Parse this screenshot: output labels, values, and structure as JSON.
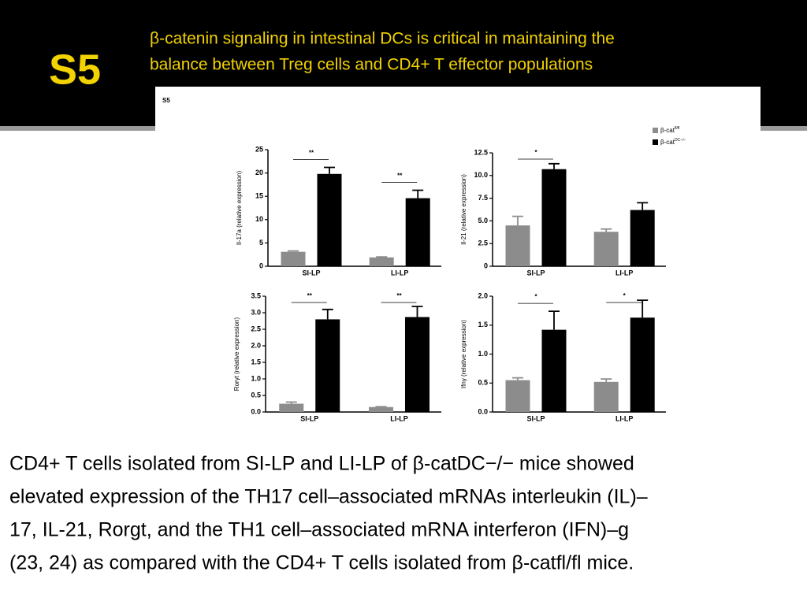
{
  "slide": {
    "number": "S5",
    "title": [
      "β-catenin signaling in intestinal DCs is critical in maintaining the",
      "balance between Treg cells and CD4+ T effector populations"
    ],
    "figure_label": "S5",
    "body": [
      "CD4+ T cells isolated from SI-LP and LI-LP of β-catDC−/− mice showed",
      "elevated expression of the TH17 cell–associated mRNAs interleukin (IL)–",
      "17, IL-21, Rorgt, and the TH1 cell–associated mRNA interferon (IFN)–g",
      "(23, 24) as compared with the CD4+ T cells isolated from β-catfl/fl mice."
    ]
  },
  "legend": [
    {
      "name": "β-cat",
      "sup": "fl/fl",
      "color": "#8c8c8c"
    },
    {
      "name": "β-cat",
      "sup": "DC−/−",
      "color": "#000000"
    }
  ],
  "chart_data": [
    {
      "type": "bar",
      "ylabel": "Il-17a (relative expression)",
      "categories": [
        "SI-LP",
        "LI-LP"
      ],
      "series": [
        {
          "color": "#8c8c8c",
          "values": [
            3.1,
            1.9
          ],
          "errors": [
            0.2,
            0.1
          ]
        },
        {
          "color": "#000000",
          "values": [
            19.8,
            14.6
          ],
          "errors": [
            1.4,
            1.7
          ]
        }
      ],
      "annotations": [
        "**",
        "**"
      ],
      "ylim": [
        0,
        25
      ],
      "yticks": [
        0,
        5,
        10,
        15,
        20,
        25
      ]
    },
    {
      "type": "bar",
      "ylabel": "Il-21 (relative expression)",
      "categories": [
        "SI-LP",
        "LI-LP"
      ],
      "series": [
        {
          "color": "#8c8c8c",
          "values": [
            4.5,
            3.8
          ],
          "errors": [
            1.0,
            0.3
          ]
        },
        {
          "color": "#000000",
          "values": [
            10.7,
            6.2
          ],
          "errors": [
            0.6,
            0.8
          ]
        }
      ],
      "annotations": [
        "*",
        null
      ],
      "ylim": [
        0,
        12.5
      ],
      "yticks": [
        0,
        2.5,
        {
          "value": 5,
          "label": "5.0"
        },
        7.5,
        {
          "value": 10,
          "label": "10.0"
        },
        12.5
      ]
    },
    {
      "type": "bar",
      "ylabel": "Rorγt (relative expression)",
      "categories": [
        "SI-LP",
        "LI-LP"
      ],
      "series": [
        {
          "color": "#8c8c8c",
          "values": [
            0.25,
            0.15
          ],
          "errors": [
            0.05,
            0.01
          ]
        },
        {
          "color": "#000000",
          "values": [
            2.8,
            2.87
          ],
          "errors": [
            0.3,
            0.32
          ]
        }
      ],
      "annotations": [
        "**",
        "**"
      ],
      "ylim": [
        0,
        3.5
      ],
      "yticks": [
        {
          "value": 0,
          "label": "0.0"
        },
        0.5,
        {
          "value": 1,
          "label": "1.0"
        },
        1.5,
        {
          "value": 2,
          "label": "2.0"
        },
        2.5,
        {
          "value": 3,
          "label": "3.0"
        },
        3.5
      ]
    },
    {
      "type": "bar",
      "ylabel": "Ifnγ (relative expression)",
      "categories": [
        "SI-LP",
        "LI-LP"
      ],
      "series": [
        {
          "color": "#8c8c8c",
          "values": [
            0.55,
            0.52
          ],
          "errors": [
            0.04,
            0.05
          ]
        },
        {
          "color": "#000000",
          "values": [
            1.42,
            1.63
          ],
          "errors": [
            0.32,
            0.3
          ]
        }
      ],
      "annotations": [
        "*",
        "*"
      ],
      "ylim": [
        0,
        2
      ],
      "yticks": [
        {
          "value": 0,
          "label": "0.0"
        },
        0.5,
        {
          "value": 1,
          "label": "1.0"
        },
        1.5,
        {
          "value": 2,
          "label": "2.0"
        }
      ]
    }
  ]
}
